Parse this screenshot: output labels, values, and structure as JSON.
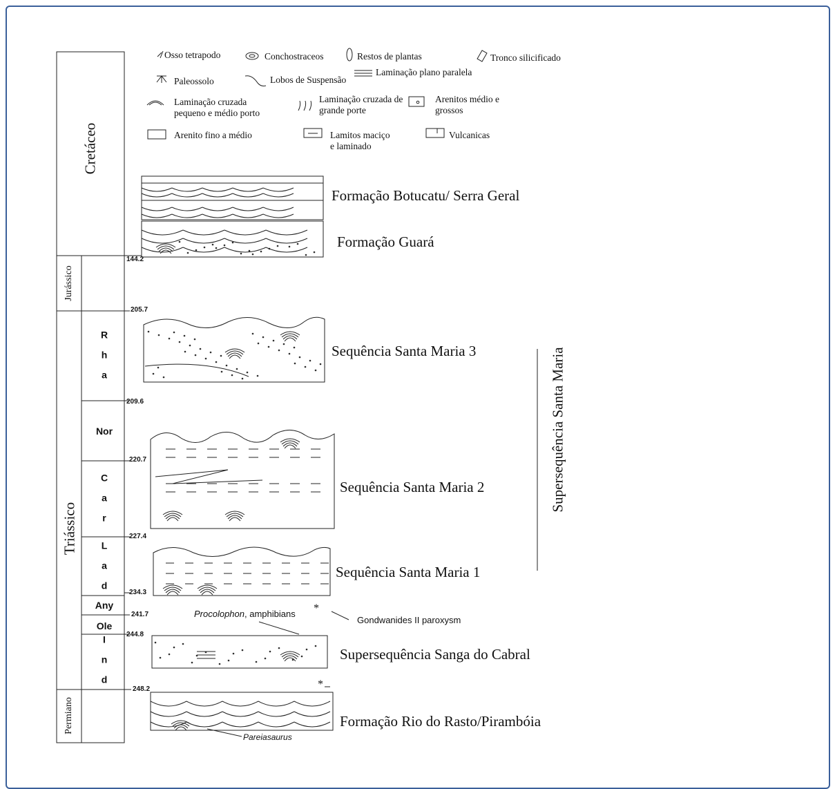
{
  "legend": [
    "Osso tetrapodo",
    "Conchostraceos",
    "Restos de plantas",
    "Tronco silicificado",
    "Paleossolo",
    "Lobos de Suspensão",
    "Laminação plano paralela",
    "Laminação cruzada pequeno e médio porto",
    "Laminação cruzada de grande porte",
    "Arenitos médio e grossos",
    "Arenito fino a médio",
    "Lamitos maciço e laminado",
    "Vulcanicas"
  ],
  "periods": [
    "Cretáceo",
    "Jurássico",
    "Triássico",
    "Permiano"
  ],
  "stages": [
    "Rha",
    "Nor",
    "Car",
    "Lad",
    "Any",
    "Ole",
    "Ind"
  ],
  "ages": [
    144.2,
    205.7,
    209.6,
    220.7,
    227.4,
    234.3,
    241.7,
    244.8,
    248.2
  ],
  "units": [
    "Formação Botucatu/ Serra Geral",
    "Formação Guará",
    "Sequência Santa Maria 3",
    "Sequência Santa Maria 2",
    "Sequência Santa Maria 1",
    "Supersequência Sanga do Cabral",
    "Formação Rio do Rasto/Pirambóia"
  ],
  "supersequence": "Supersequência Santa Maria",
  "annotations": {
    "procolophon": {
      "italic": "Procolophon",
      "rest": ", amphibians"
    },
    "gondwanides": "Gondwanides II paroxysm",
    "pareiasaurus": "Pareiasaurus",
    "markers": [
      "*",
      "*"
    ]
  }
}
